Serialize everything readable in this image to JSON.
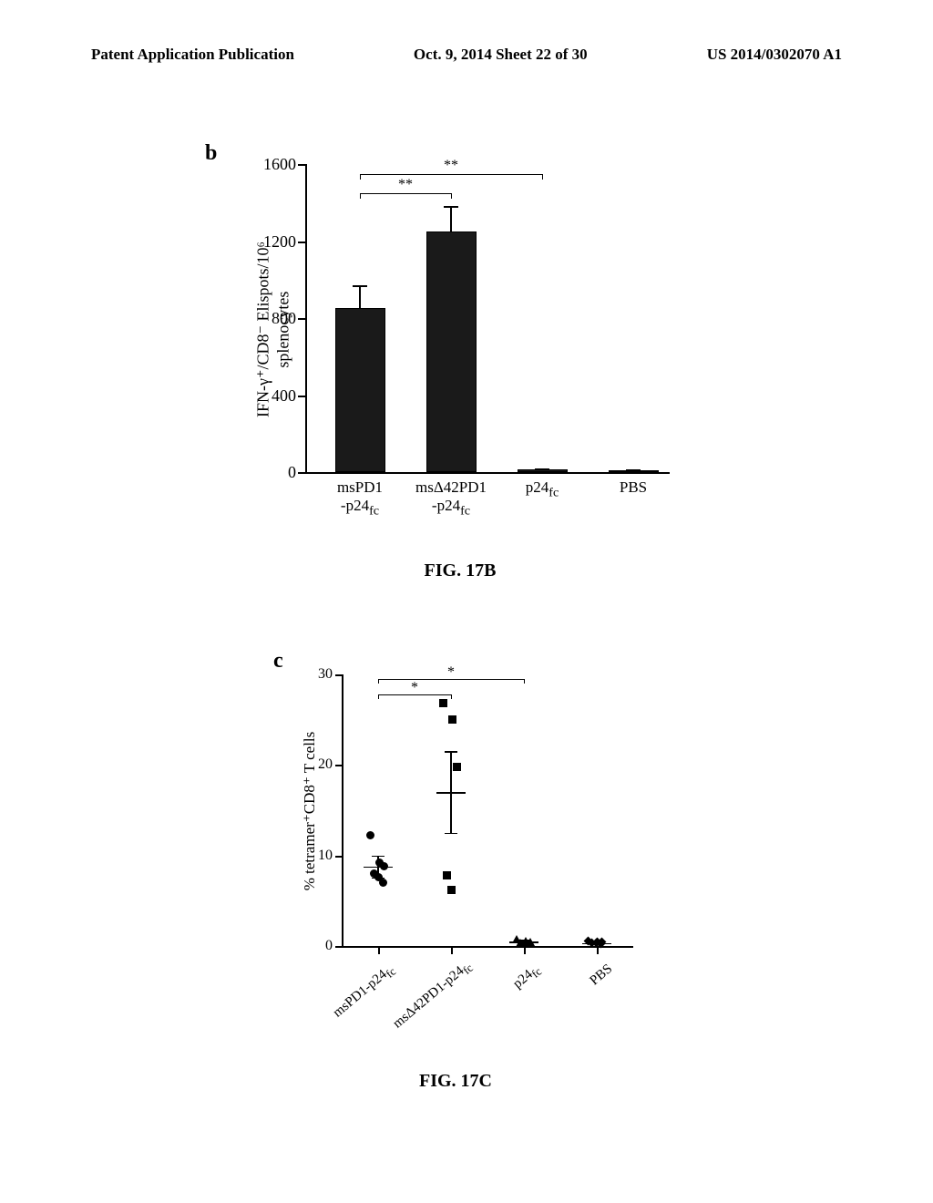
{
  "header": {
    "left": "Patent Application Publication",
    "center": "Oct. 9, 2014  Sheet 22 of 30",
    "right": "US 2014/0302070 A1"
  },
  "figure_b": {
    "panel_label": "b",
    "caption": "FIG. 17B",
    "type": "bar",
    "y_label": "IFN-γ⁺/CD8⁻ Elispots/10⁶\nsplenocytes",
    "ylim": [
      0,
      1600
    ],
    "ytick_step": 400,
    "yticks": [
      0,
      400,
      800,
      1200,
      1600
    ],
    "categories": [
      "msPD1\n-p24_fc",
      "msΔ42PD1\n-p24_fc",
      "p24_fc",
      "PBS"
    ],
    "values": [
      850,
      1250,
      15,
      10
    ],
    "errors": [
      120,
      130,
      5,
      3
    ],
    "bar_color": "#1a1a1a",
    "bar_width": 0.55,
    "significance": [
      {
        "from": 1,
        "to": 3,
        "label": "**",
        "y": 1550
      },
      {
        "from": 1,
        "to": 2,
        "label": "**",
        "y": 1450
      }
    ]
  },
  "figure_c": {
    "panel_label": "c",
    "caption": "FIG. 17C",
    "type": "scatter",
    "y_label": "% tetramer⁺CD8⁺ T cells",
    "ylim": [
      0,
      30
    ],
    "ytick_step": 10,
    "yticks": [
      0,
      10,
      20,
      30
    ],
    "categories": [
      "msPD1-p24_fc",
      "msΔ42PD1-p24_fc",
      "p24_fc",
      "PBS"
    ],
    "groups": [
      {
        "marker": "circle",
        "points": [
          12.2,
          9.2,
          8.8,
          8.0,
          7.6,
          7.0
        ],
        "mean": 8.8,
        "sem": 1.2
      },
      {
        "marker": "square",
        "points": [
          26.8,
          25.0,
          19.8,
          7.8,
          6.2
        ],
        "mean": 17.0,
        "sem": 4.5
      },
      {
        "marker": "triangle",
        "points": [
          0.8,
          0.6,
          0.5,
          0.4,
          0.3
        ],
        "mean": 0.5,
        "sem": 0.2
      },
      {
        "marker": "diamond",
        "points": [
          0.5,
          0.4,
          0.35,
          0.3,
          0.25,
          0.2
        ],
        "mean": 0.35,
        "sem": 0.1
      }
    ],
    "significance": [
      {
        "from": 1,
        "to": 3,
        "label": "*",
        "y": 29.5
      },
      {
        "from": 1,
        "to": 2,
        "label": "*",
        "y": 27.8
      }
    ]
  }
}
